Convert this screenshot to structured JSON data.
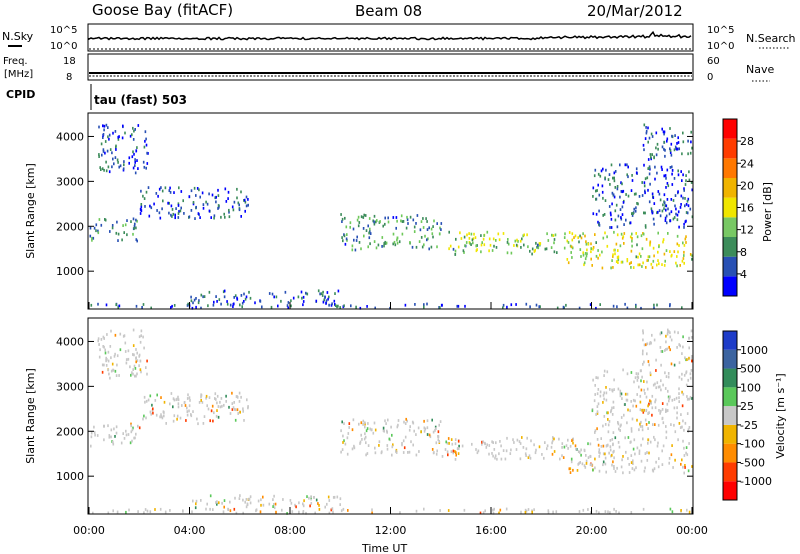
{
  "header": {
    "station": "Goose Bay (fitACF)",
    "beam": "Beam 08",
    "date": "20/Mar/2012"
  },
  "panels": {
    "nsky": {
      "label": "N.Sky",
      "ticks": [
        "10^5",
        "10^0"
      ],
      "right_label": "N.Search",
      "right_ticks": [
        "10^5",
        "10^0"
      ]
    },
    "freq": {
      "label_line1": "Freq.",
      "label_line2": "[MHz]",
      "ticks": [
        "18",
        "8"
      ],
      "right_label": "Nave",
      "right_ticks": [
        "60",
        "0"
      ]
    },
    "cpid": {
      "label": "CPID",
      "program": "tau (fast) 503"
    }
  },
  "chart_data": [
    {
      "type": "heatmap",
      "name": "power",
      "ylabel": "Slant Range [km]",
      "yticks": [
        "4000",
        "3000",
        "2000",
        "1000"
      ],
      "ylim": [
        180,
        4500
      ],
      "colorbar_label": "Power [dB]",
      "colorbar_ticks": [
        "28",
        "24",
        "20",
        "16",
        "12",
        "8",
        "4"
      ],
      "colors": [
        "#0000ff",
        "#2850b4",
        "#3c8c5a",
        "#6ec85a",
        "#f0e600",
        "#f0b400",
        "#ff7800",
        "#ff0000"
      ],
      "echo_regions": [
        {
          "start": "00:00",
          "end": "02:00",
          "range_km": [
            1700,
            2200
          ],
          "level": "8"
        },
        {
          "start": "00:20",
          "end": "02:20",
          "range_km": [
            3200,
            4300
          ],
          "level": "4"
        },
        {
          "start": "02:00",
          "end": "06:20",
          "range_km": [
            2200,
            2900
          ],
          "level": "4"
        },
        {
          "start": "00:00",
          "end": "23:59",
          "range_km": [
            200,
            300
          ],
          "level": "4"
        },
        {
          "start": "04:00",
          "end": "10:00",
          "range_km": [
            300,
            600
          ],
          "level": "4"
        },
        {
          "start": "10:00",
          "end": "14:00",
          "range_km": [
            1500,
            2300
          ],
          "level": "8"
        },
        {
          "start": "14:00",
          "end": "19:00",
          "range_km": [
            1400,
            1900
          ],
          "level": "12"
        },
        {
          "start": "19:00",
          "end": "23:59",
          "range_km": [
            1100,
            1900
          ],
          "level": "16"
        },
        {
          "start": "20:00",
          "end": "23:59",
          "range_km": [
            2000,
            3400
          ],
          "level": "4"
        },
        {
          "start": "22:00",
          "end": "23:59",
          "range_km": [
            3500,
            4300
          ],
          "level": "4"
        }
      ]
    },
    {
      "type": "heatmap",
      "name": "velocity",
      "ylabel": "Slant Range [km]",
      "yticks": [
        "4000",
        "3000",
        "2000",
        "1000"
      ],
      "ylim": [
        180,
        4500
      ],
      "colorbar_label": "Velocity [m s⁻¹]",
      "colorbar_ticks": [
        "1000",
        "500",
        "100",
        "25",
        "-25",
        "-100",
        "-500",
        "-1000"
      ],
      "colors": [
        "#1e3cc8",
        "#3c64a0",
        "#328c5a",
        "#5ac85a",
        "#c8c8c8",
        "#f0b400",
        "#ff8c00",
        "#ff3c00",
        "#ff0000"
      ],
      "xlabel": "Time UT",
      "xticks": [
        "00:00",
        "04:00",
        "08:00",
        "12:00",
        "16:00",
        "20:00",
        "00:00"
      ]
    }
  ]
}
